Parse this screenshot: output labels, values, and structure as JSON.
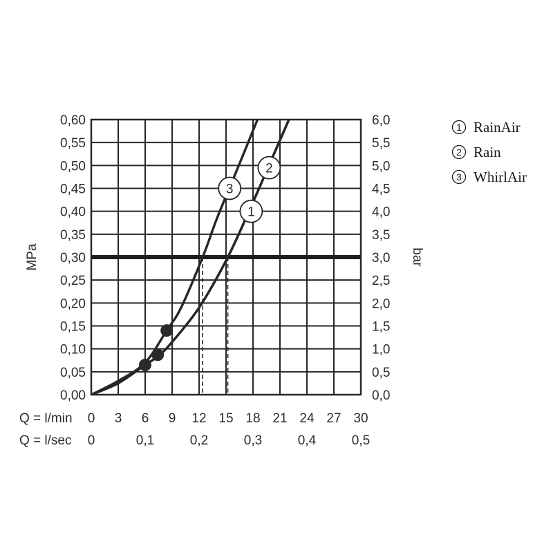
{
  "chart_data": {
    "type": "line",
    "title": "",
    "xlabel": "Q = l/min",
    "x2label": "Q = l/sec",
    "ylabel": "MPa",
    "y2label": "bar",
    "xlim": [
      0,
      30
    ],
    "ylim": [
      0,
      0.6
    ],
    "grid": true,
    "x_ticks": [
      "0",
      "3",
      "6",
      "9",
      "12",
      "15",
      "18",
      "21",
      "24",
      "27",
      "30"
    ],
    "x2_ticks": [
      {
        "q": 0,
        "label": "0"
      },
      {
        "q": 6,
        "label": "0,1"
      },
      {
        "q": 12,
        "label": "0,2"
      },
      {
        "q": 18,
        "label": "0,3"
      },
      {
        "q": 24,
        "label": "0,4"
      },
      {
        "q": 30,
        "label": "0,5"
      }
    ],
    "y_ticks": [
      "0,00",
      "0,05",
      "0,10",
      "0,15",
      "0,20",
      "0,25",
      "0,30",
      "0,35",
      "0,40",
      "0,45",
      "0,50",
      "0,55",
      "0,60"
    ],
    "y2_ticks": [
      "0,0",
      "0,5",
      "1,0",
      "1,5",
      "2,0",
      "2,5",
      "3,0",
      "3,5",
      "4,0",
      "4,5",
      "5,0",
      "5,5",
      "6,0"
    ],
    "reference_line": {
      "y": 0.3
    },
    "series": [
      {
        "id": "1",
        "name": "RainAir",
        "x": [
          0,
          3,
          6,
          7.5,
          9,
          12,
          15.2,
          18,
          20,
          22
        ],
        "y": [
          0,
          0.025,
          0.065,
          0.085,
          0.115,
          0.19,
          0.3,
          0.42,
          0.51,
          0.6
        ],
        "marker": {
          "x": 17.8,
          "y": 0.4,
          "label": "1"
        },
        "dashed_drop_x": 15.2
      },
      {
        "id": "2",
        "name": "Rain",
        "x": [
          0,
          3,
          6,
          7.5,
          9,
          12,
          15.2,
          18,
          20,
          22
        ],
        "y": [
          0,
          0.025,
          0.065,
          0.085,
          0.115,
          0.19,
          0.3,
          0.42,
          0.51,
          0.6
        ],
        "marker": {
          "x": 19.8,
          "y": 0.495,
          "label": "2"
        }
      },
      {
        "id": "3",
        "name": "WhirlAir",
        "x": [
          0,
          3,
          6,
          8.4,
          10,
          12.4,
          14,
          16,
          18.5
        ],
        "y": [
          0,
          0.03,
          0.07,
          0.14,
          0.19,
          0.3,
          0.385,
          0.48,
          0.6
        ],
        "marker": {
          "x": 15.4,
          "y": 0.45,
          "label": "3"
        },
        "dashed_drop_x": 12.4
      }
    ],
    "points": [
      {
        "x": 6.0,
        "y": 0.065
      },
      {
        "x": 7.4,
        "y": 0.087
      },
      {
        "x": 8.4,
        "y": 0.14
      }
    ]
  },
  "legend": [
    {
      "num": "1",
      "label": "RainAir"
    },
    {
      "num": "2",
      "label": "Rain"
    },
    {
      "num": "3",
      "label": "WhirlAir"
    }
  ]
}
